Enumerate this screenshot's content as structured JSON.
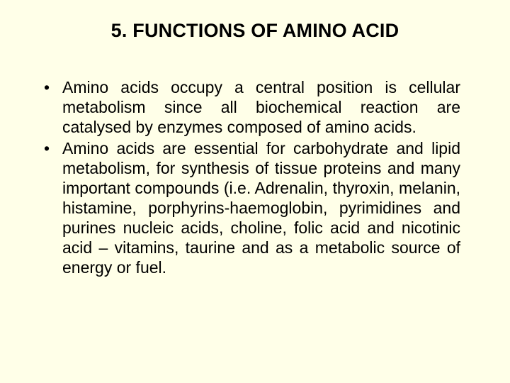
{
  "background_color": "#ffffe8",
  "text_color": "#000000",
  "font_family": "Arial",
  "title": {
    "text": "5. FUNCTIONS OF AMINO ACID",
    "font_size": 27,
    "font_weight": "bold",
    "align": "center"
  },
  "bullets": {
    "font_size": 23,
    "line_height": 1.22,
    "text_align": "justify",
    "marker": "•",
    "items": [
      "Amino acids occupy a central position is cellular metabolism since all biochemical reaction are catalysed by enzymes composed of amino acids.",
      "Amino acids are essential for carbohydrate and lipid metabolism, for synthesis of tissue proteins and many important compounds (i.e. Adrenalin, thyroxin, melanin, histamine, porphyrins-haemoglobin, pyrimidines and purines nucleic acids, choline, folic acid and nicotinic acid – vitamins, taurine  and as a metabolic source of energy or fuel."
    ]
  }
}
